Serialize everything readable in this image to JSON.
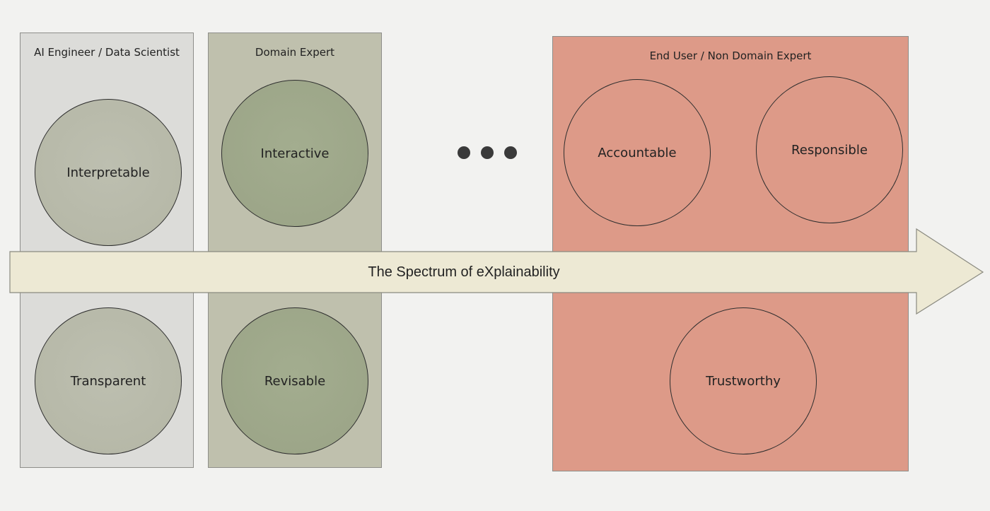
{
  "panels": {
    "ai_engineer": {
      "title": "AI Engineer / Data Scientist",
      "color": "#dcdcd9",
      "circles": [
        "Interpretable",
        "Transparent"
      ]
    },
    "domain_expert": {
      "title": "Domain Expert",
      "color": "#bfc0ad",
      "circles": [
        "Interactive",
        "Revisable"
      ]
    },
    "end_user": {
      "title": "End User / Non Domain Expert",
      "color": "#dd9a88",
      "circles": [
        "Accountable",
        "Responsible",
        "Trustworthy"
      ]
    }
  },
  "arrow": {
    "label": "The Spectrum of eXplainability",
    "color": "#ede9d4"
  },
  "ellipsis": {
    "icon": "three-dots-icon",
    "color": "#3a3a3a"
  }
}
